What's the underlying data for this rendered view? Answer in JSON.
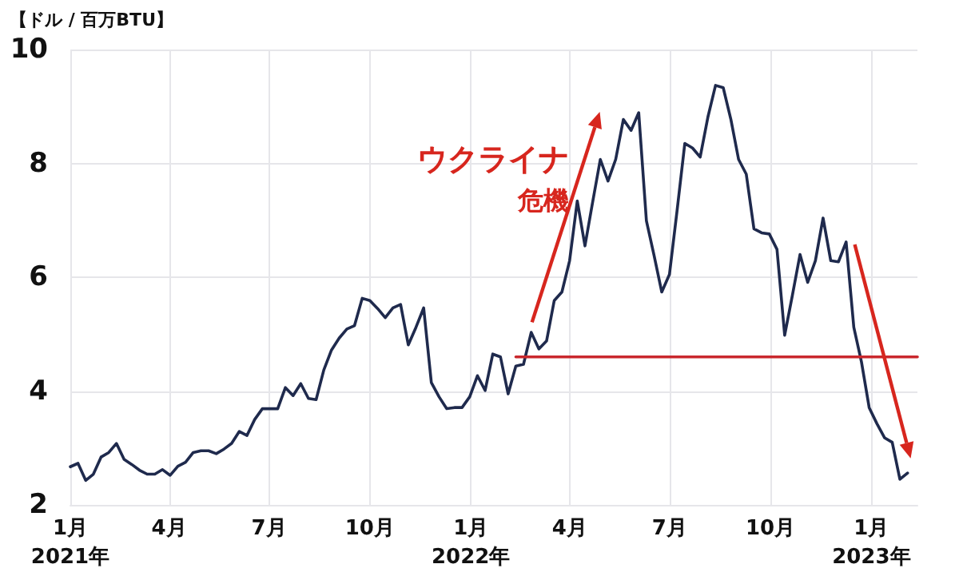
{
  "chart_data": {
    "type": "line",
    "ylabel": "【ドル / 百万BTU】",
    "annotations": [
      "ウクライナ",
      "危機"
    ],
    "x": [
      "2021-01-01",
      "2021-01-08",
      "2021-01-15",
      "2021-01-22",
      "2021-01-29",
      "2021-02-05",
      "2021-02-12",
      "2021-02-19",
      "2021-02-26",
      "2021-03-05",
      "2021-03-12",
      "2021-03-19",
      "2021-03-26",
      "2021-04-02",
      "2021-04-09",
      "2021-04-16",
      "2021-04-23",
      "2021-04-30",
      "2021-05-07",
      "2021-05-14",
      "2021-05-21",
      "2021-05-28",
      "2021-06-04",
      "2021-06-11",
      "2021-06-18",
      "2021-06-25",
      "2021-07-02",
      "2021-07-09",
      "2021-07-16",
      "2021-07-23",
      "2021-07-30",
      "2021-08-06",
      "2021-08-13",
      "2021-08-20",
      "2021-08-27",
      "2021-09-03",
      "2021-09-10",
      "2021-09-17",
      "2021-09-24",
      "2021-10-01",
      "2021-10-08",
      "2021-10-15",
      "2021-10-22",
      "2021-10-29",
      "2021-11-05",
      "2021-11-12",
      "2021-11-19",
      "2021-11-26",
      "2021-12-03",
      "2021-12-10",
      "2021-12-17",
      "2021-12-24",
      "2021-12-31",
      "2022-01-07",
      "2022-01-14",
      "2022-01-21",
      "2022-01-28",
      "2022-02-04",
      "2022-02-11",
      "2022-02-18",
      "2022-02-25",
      "2022-03-04",
      "2022-03-11",
      "2022-03-18",
      "2022-03-25",
      "2022-04-01",
      "2022-04-08",
      "2022-04-15",
      "2022-04-22",
      "2022-04-29",
      "2022-05-06",
      "2022-05-13",
      "2022-05-20",
      "2022-05-27",
      "2022-06-03",
      "2022-06-10",
      "2022-06-17",
      "2022-06-24",
      "2022-07-01",
      "2022-07-08",
      "2022-07-15",
      "2022-07-22",
      "2022-07-29",
      "2022-08-05",
      "2022-08-12",
      "2022-08-19",
      "2022-08-26",
      "2022-09-02",
      "2022-09-09",
      "2022-09-16",
      "2022-09-23",
      "2022-09-30",
      "2022-10-07",
      "2022-10-14",
      "2022-10-21",
      "2022-10-28",
      "2022-11-04",
      "2022-11-11",
      "2022-11-18",
      "2022-11-25",
      "2022-12-02",
      "2022-12-09",
      "2022-12-16",
      "2022-12-23",
      "2022-12-30",
      "2023-01-06",
      "2023-01-13",
      "2023-01-20",
      "2023-01-27",
      "2023-02-03"
    ],
    "series": [
      {
        "color": "#1f2a4d",
        "values": [
          2.67,
          2.73,
          2.43,
          2.54,
          2.84,
          2.92,
          3.08,
          2.8,
          2.71,
          2.61,
          2.54,
          2.54,
          2.62,
          2.52,
          2.68,
          2.75,
          2.92,
          2.95,
          2.95,
          2.9,
          2.98,
          3.08,
          3.29,
          3.22,
          3.5,
          3.69,
          3.69,
          3.69,
          4.06,
          3.92,
          4.13,
          3.87,
          3.85,
          4.37,
          4.72,
          4.93,
          5.09,
          5.15,
          5.63,
          5.59,
          5.45,
          5.29,
          5.46,
          5.52,
          4.81,
          5.12,
          5.46,
          4.15,
          3.9,
          3.69,
          3.71,
          3.71,
          3.9,
          4.27,
          4.01,
          4.65,
          4.6,
          3.95,
          4.44,
          4.47,
          5.03,
          4.74,
          4.88,
          5.59,
          5.74,
          6.29,
          7.34,
          6.55,
          7.32,
          8.07,
          7.69,
          8.07,
          8.77,
          8.58,
          8.89,
          6.99,
          6.38,
          5.74,
          6.05,
          7.18,
          8.35,
          8.27,
          8.11,
          8.81,
          9.37,
          9.33,
          8.77,
          8.07,
          7.81,
          6.85,
          6.78,
          6.76,
          6.49,
          4.98,
          5.68,
          6.4,
          5.91,
          6.29,
          7.04,
          6.29,
          6.27,
          6.62,
          5.12,
          4.51,
          3.71,
          3.43,
          3.18,
          3.1,
          2.45,
          2.56
        ]
      },
      {
        "type": "line",
        "color": "#c9282d",
        "x": [
          "2022-02-11",
          "2023-02-12"
        ],
        "values": [
          4.6,
          4.6
        ]
      }
    ],
    "xlim": [
      "2021-01-01",
      "2023-02-12"
    ],
    "xticks": [
      {
        "value": "2021-01-01",
        "label": "1月\n2021年"
      },
      {
        "value": "2021-04-01",
        "label": "4月"
      },
      {
        "value": "2021-07-01",
        "label": "7月"
      },
      {
        "value": "2021-10-01",
        "label": "10月"
      },
      {
        "value": "2022-01-01",
        "label": "1月\n2022年"
      },
      {
        "value": "2022-04-01",
        "label": "4月"
      },
      {
        "value": "2022-07-01",
        "label": "7月"
      },
      {
        "value": "2022-10-01",
        "label": "10月"
      },
      {
        "value": "2023-01-01",
        "label": "1月\n2023年"
      }
    ],
    "ylim": [
      2,
      10
    ],
    "yticks": [
      2,
      4,
      6,
      8,
      10
    ],
    "grid": true,
    "marker": "none",
    "line_style": "solid"
  }
}
